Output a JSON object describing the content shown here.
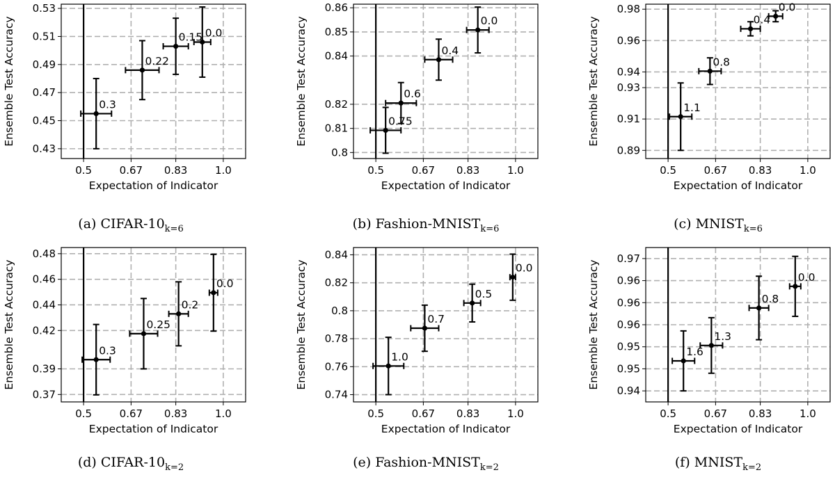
{
  "chart_data": [
    {
      "type": "scatter",
      "caption": {
        "prefix": "(a) CIFAR-10",
        "subscript": "k=6"
      },
      "xlabel": "Expectation of Indicator",
      "ylabel": "Ensemble Test Accuracy",
      "xlim": [
        0.42,
        1.08
      ],
      "ylim": [
        0.423,
        0.533
      ],
      "xticks": [
        {
          "v": 0.5,
          "label": "0.5"
        },
        {
          "v": 0.67,
          "label": "0.67"
        },
        {
          "v": 0.83,
          "label": "0.83"
        },
        {
          "v": 1.0,
          "label": "1.0"
        }
      ],
      "yticks": [
        {
          "v": 0.43,
          "label": "0.43"
        },
        {
          "v": 0.45,
          "label": "0.45"
        },
        {
          "v": 0.47,
          "label": "0.47"
        },
        {
          "v": 0.49,
          "label": "0.49"
        },
        {
          "v": 0.51,
          "label": "0.51"
        },
        {
          "v": 0.53,
          "label": "0.53"
        }
      ],
      "grid": true,
      "vline": 0.5,
      "points": [
        {
          "x": 0.545,
          "y": 0.455,
          "xerr": 0.055,
          "yerr": 0.025,
          "label": "0.3"
        },
        {
          "x": 0.71,
          "y": 0.486,
          "xerr": 0.06,
          "yerr": 0.021,
          "label": "0.22"
        },
        {
          "x": 0.83,
          "y": 0.503,
          "xerr": 0.045,
          "yerr": 0.02,
          "label": "0.15"
        },
        {
          "x": 0.925,
          "y": 0.506,
          "xerr": 0.03,
          "yerr": 0.025,
          "label": "0.0"
        }
      ]
    },
    {
      "type": "scatter",
      "caption": {
        "prefix": "(b) Fashion-MNIST",
        "subscript": "k=6"
      },
      "xlabel": "Expectation of Indicator",
      "ylabel": "Ensemble Test Accuracy",
      "xlim": [
        0.42,
        1.08
      ],
      "ylim": [
        0.7975,
        0.8615
      ],
      "xticks": [
        {
          "v": 0.5,
          "label": "0.5"
        },
        {
          "v": 0.67,
          "label": "0.67"
        },
        {
          "v": 0.83,
          "label": "0.83"
        },
        {
          "v": 1.0,
          "label": "1.0"
        }
      ],
      "yticks": [
        {
          "v": 0.8,
          "label": "0.8"
        },
        {
          "v": 0.81,
          "label": "0.81"
        },
        {
          "v": 0.82,
          "label": "0.82"
        },
        {
          "v": 0.84,
          "label": "0.84"
        },
        {
          "v": 0.85,
          "label": "0.85"
        },
        {
          "v": 0.86,
          "label": "0.86"
        }
      ],
      "grid": true,
      "vline": 0.5,
      "points": [
        {
          "x": 0.535,
          "y": 0.8092,
          "xerr": 0.055,
          "yerr": 0.0095,
          "label": "0.75"
        },
        {
          "x": 0.59,
          "y": 0.8205,
          "xerr": 0.055,
          "yerr": 0.0085,
          "label": "0.6"
        },
        {
          "x": 0.725,
          "y": 0.8385,
          "xerr": 0.05,
          "yerr": 0.0085,
          "label": "0.4"
        },
        {
          "x": 0.865,
          "y": 0.8508,
          "xerr": 0.04,
          "yerr": 0.0095,
          "label": "0.0"
        }
      ]
    },
    {
      "type": "scatter",
      "caption": {
        "prefix": "(c) MNIST",
        "subscript": "k=6"
      },
      "xlabel": "Expectation of Indicator",
      "ylabel": "Ensemble Test Accuracy",
      "xlim": [
        0.42,
        1.08
      ],
      "ylim": [
        0.8848,
        0.9832
      ],
      "xticks": [
        {
          "v": 0.5,
          "label": "0.5"
        },
        {
          "v": 0.67,
          "label": "0.67"
        },
        {
          "v": 0.83,
          "label": "0.83"
        },
        {
          "v": 1.0,
          "label": "1.0"
        }
      ],
      "yticks": [
        {
          "v": 0.89,
          "label": "0.89"
        },
        {
          "v": 0.91,
          "label": "0.91"
        },
        {
          "v": 0.93,
          "label": "0.93"
        },
        {
          "v": 0.94,
          "label": "0.94"
        },
        {
          "v": 0.96,
          "label": "0.96"
        },
        {
          "v": 0.98,
          "label": "0.98"
        }
      ],
      "grid": true,
      "vline": 0.5,
      "points": [
        {
          "x": 0.545,
          "y": 0.9115,
          "xerr": 0.04,
          "yerr": 0.0215,
          "label": "1.1"
        },
        {
          "x": 0.65,
          "y": 0.9405,
          "xerr": 0.04,
          "yerr": 0.0085,
          "label": "0.8"
        },
        {
          "x": 0.795,
          "y": 0.9675,
          "xerr": 0.035,
          "yerr": 0.0045,
          "label": "0.4"
        },
        {
          "x": 0.885,
          "y": 0.9755,
          "xerr": 0.025,
          "yerr": 0.0035,
          "label": "0.0"
        }
      ]
    },
    {
      "type": "scatter",
      "caption": {
        "prefix": "(d) CIFAR-10",
        "subscript": "k=2"
      },
      "xlabel": "Expectation of Indicator",
      "ylabel": "Ensemble Test Accuracy",
      "xlim": [
        0.42,
        1.08
      ],
      "ylim": [
        0.3642,
        0.4848
      ],
      "xticks": [
        {
          "v": 0.5,
          "label": "0.5"
        },
        {
          "v": 0.67,
          "label": "0.67"
        },
        {
          "v": 0.83,
          "label": "0.83"
        },
        {
          "v": 1.0,
          "label": "1.0"
        }
      ],
      "yticks": [
        {
          "v": 0.37,
          "label": "0.37"
        },
        {
          "v": 0.39,
          "label": "0.39"
        },
        {
          "v": 0.42,
          "label": "0.42"
        },
        {
          "v": 0.44,
          "label": "0.44"
        },
        {
          "v": 0.46,
          "label": "0.46"
        },
        {
          "v": 0.48,
          "label": "0.48"
        }
      ],
      "grid": true,
      "vline": 0.5,
      "points": [
        {
          "x": 0.545,
          "y": 0.3972,
          "xerr": 0.05,
          "yerr": 0.0275,
          "label": "0.3"
        },
        {
          "x": 0.715,
          "y": 0.4175,
          "xerr": 0.05,
          "yerr": 0.0275,
          "label": "0.25"
        },
        {
          "x": 0.84,
          "y": 0.433,
          "xerr": 0.035,
          "yerr": 0.025,
          "label": "0.2"
        },
        {
          "x": 0.965,
          "y": 0.4495,
          "xerr": 0.015,
          "yerr": 0.03,
          "label": "0.0"
        }
      ]
    },
    {
      "type": "scatter",
      "caption": {
        "prefix": "(e) Fashion-MNIST",
        "subscript": "k=2"
      },
      "xlabel": "Expectation of Indicator",
      "ylabel": "Ensemble Test Accuracy",
      "xlim": [
        0.42,
        1.08
      ],
      "ylim": [
        0.7348,
        0.8452
      ],
      "xticks": [
        {
          "v": 0.5,
          "label": "0.5"
        },
        {
          "v": 0.67,
          "label": "0.67"
        },
        {
          "v": 0.83,
          "label": "0.83"
        },
        {
          "v": 1.0,
          "label": "1.0"
        }
      ],
      "yticks": [
        {
          "v": 0.74,
          "label": "0.74"
        },
        {
          "v": 0.76,
          "label": "0.76"
        },
        {
          "v": 0.78,
          "label": "0.78"
        },
        {
          "v": 0.8,
          "label": "0.8"
        },
        {
          "v": 0.82,
          "label": "0.82"
        },
        {
          "v": 0.84,
          "label": "0.84"
        }
      ],
      "grid": true,
      "vline": 0.5,
      "points": [
        {
          "x": 0.545,
          "y": 0.7605,
          "xerr": 0.055,
          "yerr": 0.0205,
          "label": "1.0"
        },
        {
          "x": 0.675,
          "y": 0.7875,
          "xerr": 0.05,
          "yerr": 0.0165,
          "label": "0.7"
        },
        {
          "x": 0.845,
          "y": 0.8055,
          "xerr": 0.03,
          "yerr": 0.0135,
          "label": "0.5"
        },
        {
          "x": 0.99,
          "y": 0.824,
          "xerr": 0.01,
          "yerr": 0.0165,
          "label": "0.0"
        }
      ]
    },
    {
      "type": "scatter",
      "caption": {
        "prefix": "(f) MNIST",
        "subscript": "k=2"
      },
      "xlabel": "Expectation of Indicator",
      "ylabel": "Ensemble Test Accuracy",
      "xlim": [
        0.42,
        1.08
      ],
      "ylim": [
        0.9375,
        0.9725
      ],
      "xticks": [
        {
          "v": 0.5,
          "label": "0.5"
        },
        {
          "v": 0.67,
          "label": "0.67"
        },
        {
          "v": 0.83,
          "label": "0.83"
        },
        {
          "v": 1.0,
          "label": "1.0"
        }
      ],
      "yticks": [
        {
          "v": 0.94,
          "label": "0.94"
        },
        {
          "v": 0.945,
          "label": "0.95"
        },
        {
          "v": 0.95,
          "label": "0.95"
        },
        {
          "v": 0.955,
          "label": "0.96"
        },
        {
          "v": 0.96,
          "label": "0.96"
        },
        {
          "v": 0.965,
          "label": "0.96"
        },
        {
          "v": 0.97,
          "label": "0.97"
        }
      ],
      "grid": true,
      "vline": 0.5,
      "points": [
        {
          "x": 0.555,
          "y": 0.9468,
          "xerr": 0.04,
          "yerr": 0.0068,
          "label": "1.6"
        },
        {
          "x": 0.655,
          "y": 0.9503,
          "xerr": 0.04,
          "yerr": 0.0063,
          "label": "1.3"
        },
        {
          "x": 0.825,
          "y": 0.9588,
          "xerr": 0.035,
          "yerr": 0.0072,
          "label": "0.8"
        },
        {
          "x": 0.955,
          "y": 0.9637,
          "xerr": 0.02,
          "yerr": 0.0068,
          "label": "0.0"
        }
      ]
    }
  ]
}
